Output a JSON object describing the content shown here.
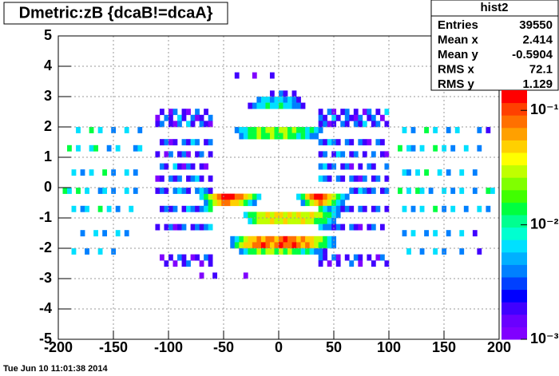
{
  "chart_data": {
    "type": "heatmap",
    "title": "Dmetric:zB {dcaB!=dcaA}",
    "date": "Tue Jun 10 11:01:38 2014",
    "stats": {
      "name": "hist2",
      "rows": [
        [
          "Entries",
          "39550"
        ],
        [
          "Mean x",
          "2.414"
        ],
        [
          "Mean y",
          "-0.5904"
        ],
        [
          "RMS x",
          "72.1"
        ],
        [
          "RMS y",
          "1.129"
        ]
      ]
    },
    "xlim": [
      -200,
      200
    ],
    "ylim": [
      -5,
      5
    ],
    "xticks": [
      -200,
      -150,
      -100,
      -50,
      0,
      50,
      100,
      150,
      200
    ],
    "yticks": [
      -5,
      -4,
      -3,
      -2,
      -1,
      0,
      1,
      2,
      3,
      4,
      5
    ],
    "grid": true,
    "log_z": true,
    "zlim": [
      0.001,
      0.15
    ],
    "zticks": [
      {
        "value": 0.001,
        "label": "10⁻³"
      },
      {
        "value": 0.01,
        "label": "10⁻²"
      },
      {
        "value": 0.1,
        "label": "10⁻¹"
      }
    ],
    "palette": [
      "#8000ff",
      "#6a00ff",
      "#4000ff",
      "#0000ff",
      "#0040ff",
      "#0080ff",
      "#00b0ff",
      "#00e0ff",
      "#00ffd0",
      "#00ff90",
      "#00ff40",
      "#40ff00",
      "#80ff00",
      "#c0ff00",
      "#ffff00",
      "#ffd000",
      "#ffa000",
      "#ff7000",
      "#ff4000",
      "#ff0000"
    ],
    "xbin": 4,
    "ybin": 0.2,
    "rows": [
      {
        "y": 3.0,
        "x0": -8,
        "values": [
          0.002,
          null,
          0.004,
          0.002,
          null,
          0.002
        ]
      },
      {
        "y": 2.8,
        "x0": -20,
        "values": [
          0.004,
          0.007,
          0.007,
          0.004,
          0.007,
          0.007,
          0.004,
          0.007,
          0.004,
          0.002
        ]
      },
      {
        "y": 2.6,
        "x0": -28,
        "values": [
          0.002,
          0.004,
          0.007,
          0.007,
          0.015,
          0.007,
          0.007,
          0.015,
          0.007,
          0.007,
          0.004,
          0.004,
          0.002
        ]
      },
      {
        "y": 1.8,
        "x0": -40,
        "values": [
          0.004,
          0.007,
          0.007,
          0.015,
          0.015,
          0.03,
          0.015,
          0.03,
          0.03,
          0.015,
          0.03,
          0.03,
          0.015,
          0.03,
          0.015,
          0.015,
          0.007,
          0.015,
          0.007,
          0.004
        ]
      },
      {
        "y": 1.6,
        "x0": -36,
        "values": [
          0.004,
          0.007,
          0.015,
          0.015,
          0.03,
          0.015,
          0.015,
          0.03,
          0.015,
          0.015,
          0.03,
          0.015,
          0.015,
          0.007,
          0.015,
          0.007,
          0.004,
          0.004
        ]
      },
      {
        "y": -0.4,
        "x0": -72,
        "values": [
          0.007,
          0.015,
          0.03,
          0.05,
          0.08,
          0.12,
          0.12,
          0.12,
          0.08,
          0.08,
          0.05,
          0.03,
          0.015,
          0.007
        ]
      },
      {
        "y": -0.6,
        "x0": -68,
        "values": [
          0.004,
          0.015,
          0.03,
          0.05,
          0.08,
          0.08,
          0.05,
          0.05,
          0.03,
          0.015,
          0.007,
          0.004
        ]
      },
      {
        "y": -0.4,
        "x0": 16,
        "values": [
          0.007,
          0.015,
          0.05,
          0.08,
          0.12,
          0.12,
          0.08,
          0.05,
          0.03,
          0.015,
          0.007,
          0.004
        ]
      },
      {
        "y": -0.6,
        "x0": 20,
        "values": [
          0.004,
          0.015,
          0.03,
          0.05,
          0.08,
          0.05,
          0.03,
          0.015,
          0.007,
          0.004
        ]
      },
      {
        "y": -1.0,
        "x0": -32,
        "values": [
          0.007,
          0.015,
          0.015,
          0.03,
          0.03,
          0.05,
          0.03,
          0.05,
          0.05,
          0.03,
          0.05,
          0.03,
          0.05,
          0.03,
          0.03,
          0.05,
          0.03,
          0.03,
          0.015,
          0.015,
          0.007,
          0.004
        ]
      },
      {
        "y": -1.2,
        "x0": -28,
        "values": [
          0.007,
          0.015,
          0.03,
          0.03,
          0.03,
          0.05,
          0.03,
          0.03,
          0.05,
          0.03,
          0.03,
          0.03,
          0.05,
          0.03,
          0.03,
          0.015,
          0.015,
          0.015,
          0.007,
          0.004
        ]
      },
      {
        "y": -1.8,
        "x0": -44,
        "values": [
          0.004,
          0.007,
          0.015,
          0.03,
          0.05,
          0.05,
          0.08,
          0.05,
          0.08,
          0.08,
          0.05,
          0.08,
          0.12,
          0.08,
          0.08,
          0.05,
          0.08,
          0.05,
          0.05,
          0.03,
          0.03,
          0.015,
          0.007,
          0.004
        ]
      },
      {
        "y": -2.0,
        "x0": -44,
        "values": [
          0.004,
          0.015,
          0.03,
          0.05,
          0.05,
          0.08,
          0.08,
          0.12,
          0.08,
          0.05,
          0.08,
          0.12,
          0.08,
          0.08,
          0.12,
          0.08,
          0.05,
          0.08,
          0.05,
          0.03,
          0.015,
          0.015,
          0.007,
          0.004
        ]
      },
      {
        "y": -2.2,
        "x0": -36,
        "values": [
          0.004,
          0.007,
          0.015,
          0.015,
          0.03,
          0.015,
          0.03,
          0.03,
          0.015,
          0.03,
          0.015,
          0.03,
          0.015,
          0.015,
          0.007,
          0.015,
          0.007,
          0.004,
          0.004,
          0.002
        ]
      },
      {
        "y": 2.4,
        "x0": -112,
        "values": [
          null,
          0.002,
          null,
          0.0012,
          0.004,
          null,
          0.002,
          0.0012,
          null,
          0.004,
          null,
          0.002,
          null
        ]
      },
      {
        "y": 2.2,
        "x0": -112,
        "values": [
          0.0012,
          null,
          0.004,
          0.002,
          null,
          0.007,
          0.002,
          null,
          0.004,
          0.0012,
          0.002,
          null,
          0.004
        ]
      },
      {
        "y": 2.0,
        "x0": -112,
        "values": [
          0.002,
          0.004,
          null,
          0.002,
          0.0012,
          0.004,
          null,
          0.007,
          0.002,
          null,
          0.004,
          0.002,
          0.0012
        ]
      },
      {
        "y": 1.4,
        "x0": -112,
        "values": [
          null,
          0.002,
          0.004,
          0.0012,
          0.002,
          null,
          0.004,
          0.002,
          0.007,
          0.004,
          null,
          0.002,
          0.004
        ]
      },
      {
        "y": 1.0,
        "x0": -112,
        "values": [
          0.002,
          null,
          0.0012,
          0.004,
          null,
          0.002,
          0.004,
          0.0012,
          null,
          0.002,
          0.004,
          null,
          0.002
        ]
      },
      {
        "y": 0.6,
        "x0": -112,
        "values": [
          null,
          0.004,
          0.002,
          null,
          0.007,
          0.002,
          0.0012,
          0.004,
          0.002,
          null,
          0.002,
          0.0012,
          null
        ]
      },
      {
        "y": 0.2,
        "x0": -112,
        "values": [
          0.0012,
          0.002,
          null,
          0.004,
          0.002,
          0.004,
          null,
          0.002,
          0.004,
          0.007,
          0.002,
          null,
          0.002
        ]
      },
      {
        "y": -0.2,
        "x0": -112,
        "values": [
          0.002,
          0.004,
          0.002,
          null,
          0.004,
          0.007,
          0.004,
          0.002,
          null,
          0.004,
          0.007,
          0.004,
          0.002
        ]
      },
      {
        "y": -0.8,
        "x0": -112,
        "values": [
          null,
          0.002,
          0.004,
          0.002,
          0.004,
          null,
          0.002,
          0.007,
          0.004,
          0.002,
          0.004,
          0.007,
          0.015
        ]
      },
      {
        "y": -1.4,
        "x0": -112,
        "values": [
          0.002,
          null,
          0.002,
          0.004,
          0.0012,
          0.002,
          0.004,
          null,
          0.002,
          0.004,
          0.002,
          0.004,
          0.007
        ]
      },
      {
        "y": -2.4,
        "x0": -112,
        "values": [
          null,
          0.0012,
          null,
          0.002,
          null,
          0.004,
          0.002,
          null,
          0.0012,
          0.002,
          null,
          0.004,
          0.002
        ]
      },
      {
        "y": -2.6,
        "x0": -112,
        "values": [
          null,
          null,
          0.002,
          null,
          0.0012,
          null,
          0.002,
          0.004,
          null,
          null,
          0.0012,
          null,
          0.002
        ]
      },
      {
        "y": 2.4,
        "x0": 36,
        "values": [
          0.002,
          null,
          0.004,
          0.0012,
          null,
          0.002,
          0.004,
          null,
          0.002,
          null,
          0.0012,
          0.004,
          null,
          0.002,
          null,
          0.007
        ]
      },
      {
        "y": 2.2,
        "x0": 36,
        "values": [
          0.004,
          0.002,
          null,
          0.007,
          0.002,
          null,
          0.004,
          0.002,
          0.0012,
          0.004,
          null,
          0.002,
          0.004,
          null,
          0.0012,
          null
        ]
      },
      {
        "y": 2.0,
        "x0": 36,
        "values": [
          0.002,
          0.004,
          0.0012,
          0.002,
          null,
          0.004,
          0.002,
          null,
          0.004,
          0.002,
          0.007,
          null,
          0.002,
          0.004,
          null,
          0.002
        ]
      },
      {
        "y": 1.4,
        "x0": 36,
        "values": [
          0.004,
          0.002,
          0.007,
          0.004,
          0.002,
          null,
          0.004,
          0.002,
          null,
          0.004,
          0.002,
          0.0012,
          null,
          0.004,
          0.002,
          null
        ]
      },
      {
        "y": 1.0,
        "x0": 36,
        "values": [
          0.002,
          0.004,
          null,
          0.002,
          0.007,
          0.004,
          null,
          0.002,
          0.004,
          null,
          0.002,
          null,
          0.004,
          null,
          0.002,
          0.0012
        ]
      },
      {
        "y": 0.6,
        "x0": 36,
        "values": [
          0.004,
          0.007,
          0.002,
          0.004,
          null,
          0.002,
          0.004,
          0.0012,
          null,
          0.002,
          null,
          0.004,
          0.002,
          null,
          null,
          0.004
        ]
      },
      {
        "y": 0.2,
        "x0": 36,
        "values": [
          0.007,
          0.004,
          0.002,
          null,
          0.004,
          0.002,
          null,
          0.004,
          0.002,
          0.0012,
          0.004,
          null,
          0.002,
          0.004,
          null,
          0.002
        ]
      },
      {
        "y": -0.2,
        "x0": 64,
        "values": [
          0.004,
          0.002,
          0.007,
          0.004,
          0.002,
          0.004,
          null,
          0.002,
          0.004
        ]
      },
      {
        "y": -0.8,
        "x0": 36,
        "values": [
          0.015,
          0.007,
          0.004,
          0.007,
          0.004,
          0.002,
          0.004,
          0.002,
          null,
          0.004,
          0.002,
          null,
          0.002,
          0.004,
          null,
          0.002
        ]
      },
      {
        "y": -1.4,
        "x0": 36,
        "values": [
          0.007,
          0.004,
          0.004,
          0.002,
          0.004,
          0.002,
          null,
          0.004,
          0.002,
          0.0012,
          null,
          0.002,
          0.004,
          null,
          0.002,
          null
        ]
      },
      {
        "y": -2.4,
        "x0": 36,
        "values": [
          0.004,
          0.002,
          null,
          0.004,
          0.0012,
          null,
          0.002,
          null,
          0.004,
          0.002,
          null,
          0.002,
          null,
          0.0012,
          0.004,
          null
        ]
      },
      {
        "y": -2.6,
        "x0": 36,
        "values": [
          0.002,
          null,
          0.0012,
          null,
          0.002,
          null,
          null,
          0.004,
          null,
          0.0012,
          null,
          null,
          0.002,
          null,
          null,
          0.002
        ]
      },
      {
        "y": -3.0,
        "x0": -72,
        "values": [
          0.0012,
          null,
          null,
          0.002,
          null,
          null,
          null,
          null,
          null,
          null,
          0.0012
        ]
      },
      {
        "y": 3.6,
        "x0": -40,
        "values": [
          0.002,
          null,
          null,
          null,
          0.0012,
          null,
          null,
          null,
          0.002
        ]
      },
      {
        "y": 1.8,
        "x0": -184,
        "values": [
          0.007,
          null,
          null,
          0.015,
          null,
          0.007,
          null,
          null,
          0.004,
          null,
          null,
          0.007,
          null,
          null,
          0.004
        ]
      },
      {
        "y": 1.2,
        "x0": -192,
        "values": [
          0.015,
          null,
          0.007,
          null,
          null,
          0.007,
          0.015,
          null,
          null,
          0.004,
          null,
          0.007,
          null,
          null,
          null,
          0.004,
          0.007
        ]
      },
      {
        "y": 0.4,
        "x0": -188,
        "values": [
          0.007,
          null,
          0.004,
          null,
          0.007,
          null,
          null,
          0.015,
          null,
          0.004,
          null,
          null,
          0.007,
          null,
          0.004
        ]
      },
      {
        "y": -0.2,
        "x0": -196,
        "values": [
          0.015,
          0.007,
          null,
          0.015,
          null,
          0.007,
          null,
          null,
          0.004,
          0.007,
          null,
          0.004,
          null,
          null,
          0.007,
          null,
          0.004
        ]
      },
      {
        "y": -0.8,
        "x0": -188,
        "values": [
          0.007,
          null,
          0.004,
          0.007,
          null,
          null,
          0.015,
          null,
          0.007,
          null,
          0.004,
          null,
          null,
          0.007
        ]
      },
      {
        "y": -1.6,
        "x0": -180,
        "values": [
          0.004,
          null,
          null,
          0.007,
          null,
          0.004,
          null,
          null,
          0.007,
          null,
          0.004
        ]
      },
      {
        "y": -2.2,
        "x0": -188,
        "values": [
          0.007,
          null,
          null,
          0.004,
          null,
          null,
          0.007,
          null,
          null,
          0.004
        ]
      },
      {
        "y": 1.8,
        "x0": 112,
        "values": [
          0.007,
          null,
          0.004,
          null,
          null,
          0.015,
          null,
          0.007,
          null,
          null,
          0.004,
          null,
          0.007,
          null,
          null,
          null,
          null,
          0.004,
          null,
          0.002
        ]
      },
      {
        "y": 1.2,
        "x0": 108,
        "values": [
          0.015,
          null,
          0.007,
          0.004,
          null,
          0.007,
          null,
          null,
          0.015,
          null,
          0.007,
          null,
          0.004,
          null,
          null,
          0.007,
          null,
          null,
          0.004
        ]
      },
      {
        "y": 0.4,
        "x0": 112,
        "values": [
          0.007,
          0.004,
          null,
          0.007,
          null,
          0.015,
          null,
          null,
          0.007,
          null,
          0.004,
          null,
          null,
          0.007,
          null,
          null,
          0.004
        ]
      },
      {
        "y": -0.2,
        "x0": 108,
        "values": [
          0.015,
          null,
          0.007,
          null,
          0.015,
          0.007,
          null,
          0.004,
          null,
          null,
          0.007,
          null,
          0.004,
          null,
          0.007,
          null,
          null,
          0.004,
          null,
          null,
          0.015,
          0.007
        ]
      },
      {
        "y": -0.8,
        "x0": 112,
        "values": [
          0.007,
          null,
          0.004,
          null,
          0.007,
          null,
          null,
          0.015,
          null,
          0.004,
          null,
          0.007,
          null,
          null,
          0.004,
          null,
          null,
          0.007,
          null,
          0.004
        ]
      },
      {
        "y": -1.6,
        "x0": 112,
        "values": [
          0.004,
          null,
          0.007,
          null,
          null,
          0.004,
          null,
          0.007,
          null,
          null,
          0.004,
          null,
          null,
          0.007,
          null,
          null,
          0.002
        ]
      },
      {
        "y": -2.2,
        "x0": 116,
        "values": [
          0.007,
          null,
          null,
          0.004,
          null,
          null,
          0.007,
          null,
          0.004,
          null,
          null,
          null,
          0.004,
          null,
          null,
          null,
          0.002
        ]
      }
    ]
  }
}
